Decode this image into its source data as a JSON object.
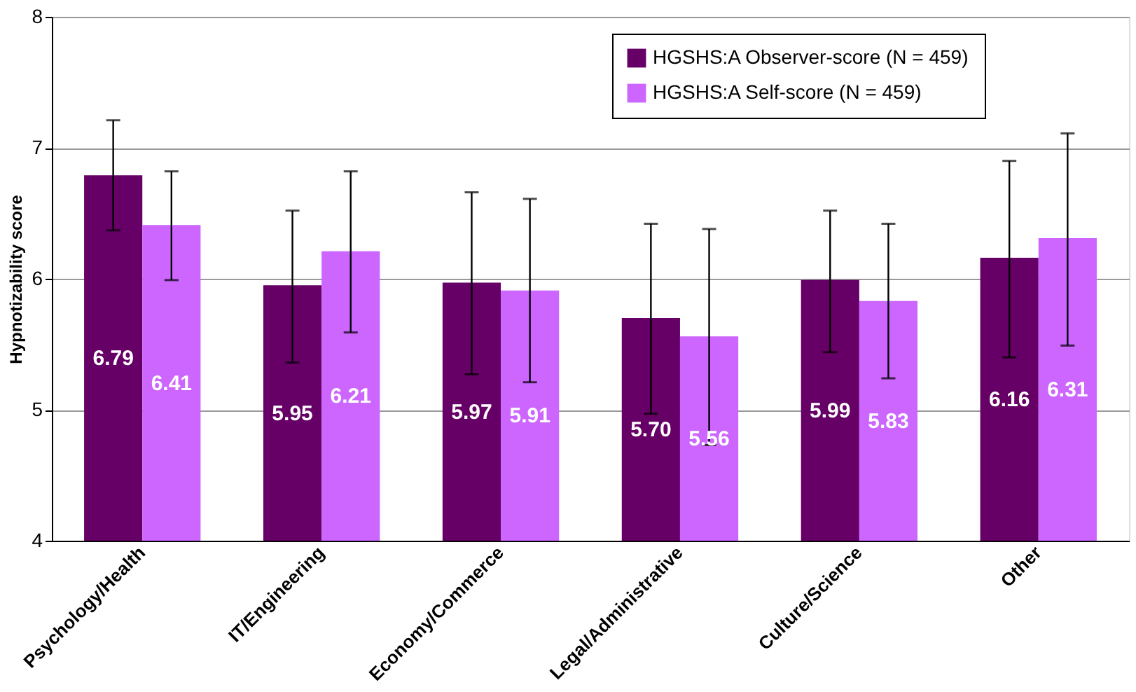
{
  "chart_data": {
    "type": "bar",
    "ylabel": "Hypnotizability score",
    "categories": [
      "Psychology/Health",
      "IT/Engineering",
      "Economy/Commerce",
      "Legal/Administrative",
      "Culture/Science",
      "Other"
    ],
    "series": [
      {
        "name": "HGSHS:A Observer-score (N = 459)",
        "color": "#660066",
        "values": [
          6.79,
          5.95,
          5.97,
          5.7,
          5.99,
          6.16
        ],
        "value_labels": [
          "6.79",
          "5.95",
          "5.97",
          "5.70",
          "5.99",
          "6.16"
        ],
        "errors": [
          [
            6.37,
            7.21
          ],
          [
            5.36,
            6.52
          ],
          [
            5.27,
            6.66
          ],
          [
            4.97,
            6.42
          ],
          [
            5.44,
            6.52
          ],
          [
            5.4,
            6.9
          ]
        ]
      },
      {
        "name": "HGSHS:A Self-score (N = 459)",
        "color": "#cc66ff",
        "values": [
          6.41,
          6.21,
          5.91,
          5.56,
          5.83,
          6.31
        ],
        "value_labels": [
          "6.41",
          "6.21",
          "5.91",
          "5.56",
          "5.83",
          "6.31"
        ],
        "errors": [
          [
            5.99,
            6.82
          ],
          [
            5.59,
            6.82
          ],
          [
            5.21,
            6.61
          ],
          [
            4.73,
            6.38
          ],
          [
            5.24,
            6.42
          ],
          [
            5.49,
            7.11
          ]
        ]
      }
    ],
    "ylim": [
      4,
      8
    ],
    "yticks": [
      4,
      5,
      6,
      7,
      8
    ],
    "grid": "y",
    "legend": "top"
  }
}
